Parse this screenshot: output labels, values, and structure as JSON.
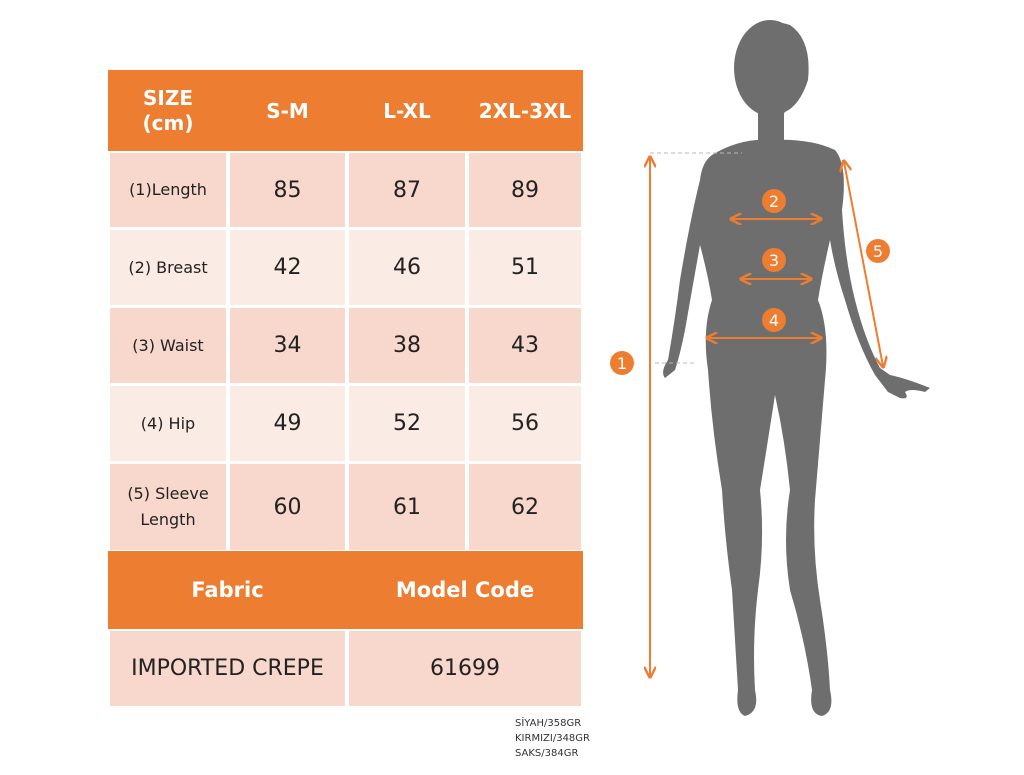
{
  "table": {
    "header": {
      "size": "SIZE",
      "unit": "(cm)",
      "columns": [
        "S-M",
        "L-XL",
        "2XL-3XL"
      ]
    },
    "rows": [
      {
        "label": "(1)Length",
        "values": [
          "85",
          "87",
          "89"
        ]
      },
      {
        "label": "(2) Breast",
        "values": [
          "42",
          "46",
          "51"
        ]
      },
      {
        "label": "(3) Waist",
        "values": [
          "34",
          "38",
          "43"
        ]
      },
      {
        "label": "(4) Hip",
        "values": [
          "49",
          "52",
          "56"
        ]
      },
      {
        "label_line1": "(5) Sleeve",
        "label_line2": "Length",
        "values": [
          "60",
          "61",
          "62"
        ]
      }
    ],
    "fabric_header": "Fabric",
    "model_code_header": "Model Code",
    "fabric": "IMPORTED CREPE",
    "model_code": "61699"
  },
  "weights": [
    "SİYAH/358GR",
    "KIRMIZI/348GR",
    "SAKS/384GR"
  ],
  "figure": {
    "markers": [
      "1",
      "2",
      "3",
      "4",
      "5"
    ]
  },
  "colors": {
    "accent": "#ED7D31",
    "row_dark": "#F8D8CC",
    "row_light": "#FBEBE5",
    "silhouette": "#6E6E6E"
  }
}
